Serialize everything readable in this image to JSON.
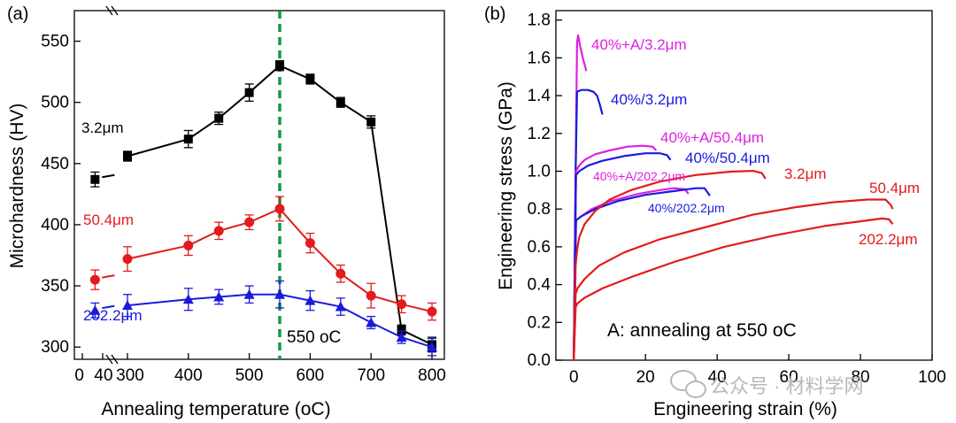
{
  "colors": {
    "black": "#000000",
    "red": "#e41a1c",
    "blue": "#1a1adf",
    "magenta": "#e020e0",
    "green": "#119944",
    "watermark": "#b8b8b8"
  },
  "watermark": {
    "text": "公众号 · 材料学网",
    "icon": "wechat-icon"
  },
  "chart_data": [
    {
      "type": "line",
      "panel_label": "(a)",
      "xlabel": "Annealing temperature (oC)",
      "ylabel": "Microhardness (HV)",
      "x_tick_labels": [
        "0",
        "40",
        "300",
        "400",
        "500",
        "600",
        "700",
        "800"
      ],
      "y_ticks": [
        300,
        350,
        400,
        450,
        500,
        550
      ],
      "axis_break": "between 40 and 300",
      "ylim": [
        290,
        575
      ],
      "grid": false,
      "reference_line": {
        "x": 550,
        "label": "550 oC",
        "style": "dashed",
        "color": "#119944"
      },
      "series": [
        {
          "name": "3.2μm",
          "marker": "square",
          "color": "#000000",
          "x": [
            25,
            300,
            400,
            450,
            500,
            550,
            600,
            650,
            700,
            750,
            800
          ],
          "y": [
            437,
            456,
            470,
            487,
            508,
            530,
            519,
            500,
            484,
            314,
            302
          ],
          "err": [
            6,
            4,
            7,
            5,
            7,
            4,
            4,
            4,
            5,
            4,
            6
          ]
        },
        {
          "name": "50.4μm",
          "marker": "circle",
          "color": "#e41a1c",
          "x": [
            25,
            300,
            400,
            450,
            500,
            550,
            600,
            650,
            700,
            750,
            800
          ],
          "y": [
            355,
            372,
            383,
            395,
            402,
            413,
            385,
            360,
            342,
            335,
            329
          ],
          "err": [
            8,
            10,
            8,
            7,
            6,
            10,
            8,
            7,
            10,
            7,
            7
          ]
        },
        {
          "name": "202.2μm",
          "marker": "triangle",
          "color": "#1a1adf",
          "x": [
            25,
            300,
            400,
            450,
            500,
            550,
            600,
            650,
            700,
            750,
            800
          ],
          "y": [
            330,
            334,
            339,
            341,
            343,
            343,
            338,
            333,
            320,
            308,
            300
          ],
          "err": [
            6,
            9,
            9,
            6,
            7,
            11,
            8,
            7,
            5,
            5,
            7
          ]
        }
      ]
    },
    {
      "type": "line",
      "panel_label": "(b)",
      "xlabel": "Engineering strain (%)",
      "ylabel": "Engineering stress (GPa)",
      "xlim": [
        -5,
        100
      ],
      "ylim": [
        0,
        1.85
      ],
      "x_ticks": [
        0,
        20,
        40,
        60,
        80,
        100
      ],
      "y_ticks": [
        0.0,
        0.2,
        0.4,
        0.6,
        0.8,
        1.0,
        1.2,
        1.4,
        1.6,
        1.8
      ],
      "grid": false,
      "annotation": "A: annealing at 550 oC",
      "series": [
        {
          "name": "40%+A/3.2μm",
          "color": "#e020e0",
          "points": [
            [
              0,
              0
            ],
            [
              0.5,
              1.0
            ],
            [
              0.9,
              1.68
            ],
            [
              1.2,
              1.72
            ],
            [
              1.8,
              1.66
            ],
            [
              2.5,
              1.6
            ],
            [
              3.5,
              1.53
            ]
          ]
        },
        {
          "name": "40%/3.2μm",
          "color": "#1a1adf",
          "points": [
            [
              0,
              0
            ],
            [
              0.5,
              1.0
            ],
            [
              0.9,
              1.42
            ],
            [
              2,
              1.43
            ],
            [
              4,
              1.43
            ],
            [
              5.5,
              1.42
            ],
            [
              6.5,
              1.4
            ],
            [
              7.3,
              1.35
            ],
            [
              8,
              1.3
            ]
          ]
        },
        {
          "name": "40%+A/50.4μm",
          "color": "#e020e0",
          "points": [
            [
              0,
              0
            ],
            [
              0.6,
              1.0
            ],
            [
              1.5,
              1.03
            ],
            [
              3,
              1.06
            ],
            [
              6,
              1.09
            ],
            [
              10,
              1.11
            ],
            [
              15,
              1.13
            ],
            [
              19,
              1.135
            ],
            [
              22,
              1.13
            ],
            [
              23,
              1.11
            ]
          ]
        },
        {
          "name": "40%/50.4μm",
          "color": "#1a1adf",
          "points": [
            [
              0,
              0
            ],
            [
              0.6,
              0.98
            ],
            [
              1.5,
              1.0
            ],
            [
              4,
              1.03
            ],
            [
              8,
              1.055
            ],
            [
              14,
              1.08
            ],
            [
              20,
              1.095
            ],
            [
              24,
              1.095
            ],
            [
              26,
              1.085
            ],
            [
              27,
              1.06
            ]
          ]
        },
        {
          "name": "40%+A/202.2μm",
          "color": "#e020e0",
          "points": [
            [
              0,
              0
            ],
            [
              0.6,
              0.74
            ],
            [
              2,
              0.76
            ],
            [
              5,
              0.8
            ],
            [
              10,
              0.84
            ],
            [
              18,
              0.88
            ],
            [
              24,
              0.9
            ],
            [
              28,
              0.91
            ],
            [
              31,
              0.905
            ],
            [
              32,
              0.88
            ]
          ]
        },
        {
          "name": "40%/202.2μm",
          "color": "#1a1adf",
          "points": [
            [
              0,
              0
            ],
            [
              0.6,
              0.74
            ],
            [
              2,
              0.76
            ],
            [
              6,
              0.8
            ],
            [
              12,
              0.84
            ],
            [
              20,
              0.875
            ],
            [
              28,
              0.895
            ],
            [
              34,
              0.91
            ],
            [
              36.5,
              0.91
            ],
            [
              38,
              0.87
            ]
          ]
        },
        {
          "name": "3.2μm",
          "color": "#e41a1c",
          "points": [
            [
              0,
              0
            ],
            [
              0.5,
              0.5
            ],
            [
              0.9,
              0.58
            ],
            [
              1.5,
              0.65
            ],
            [
              3,
              0.72
            ],
            [
              6,
              0.79
            ],
            [
              10,
              0.85
            ],
            [
              16,
              0.9
            ],
            [
              24,
              0.945
            ],
            [
              34,
              0.98
            ],
            [
              44,
              0.998
            ],
            [
              50,
              1.002
            ],
            [
              52.5,
              0.99
            ],
            [
              53.5,
              0.96
            ]
          ]
        },
        {
          "name": "50.4μm",
          "color": "#e41a1c",
          "points": [
            [
              0,
              0
            ],
            [
              0.5,
              0.35
            ],
            [
              1,
              0.38
            ],
            [
              3,
              0.43
            ],
            [
              7,
              0.5
            ],
            [
              14,
              0.57
            ],
            [
              24,
              0.64
            ],
            [
              36,
              0.7
            ],
            [
              50,
              0.77
            ],
            [
              62,
              0.81
            ],
            [
              72,
              0.835
            ],
            [
              82,
              0.85
            ],
            [
              87,
              0.85
            ],
            [
              88.5,
              0.82
            ],
            [
              89,
              0.8
            ]
          ]
        },
        {
          "name": "202.2μm",
          "color": "#e41a1c",
          "points": [
            [
              0,
              0
            ],
            [
              0.5,
              0.28
            ],
            [
              1,
              0.3
            ],
            [
              3,
              0.33
            ],
            [
              8,
              0.38
            ],
            [
              16,
              0.44
            ],
            [
              28,
              0.52
            ],
            [
              42,
              0.6
            ],
            [
              56,
              0.66
            ],
            [
              70,
              0.71
            ],
            [
              80,
              0.735
            ],
            [
              86,
              0.75
            ],
            [
              88,
              0.745
            ],
            [
              89,
              0.72
            ]
          ]
        }
      ],
      "curve_labels": [
        {
          "text": "40%+A/3.2μm",
          "color": "#e020e0"
        },
        {
          "text": "40%/3.2μm",
          "color": "#1a1adf"
        },
        {
          "text": "40%+A/50.4μm",
          "color": "#e020e0"
        },
        {
          "text": "40%/50.4μm",
          "color": "#1a1adf"
        },
        {
          "text": "40%+A/202.2μm",
          "color": "#e020e0"
        },
        {
          "text": "40%/202.2μm",
          "color": "#1a1adf"
        },
        {
          "text": "3.2μm",
          "color": "#e41a1c"
        },
        {
          "text": "50.4μm",
          "color": "#e41a1c"
        },
        {
          "text": "202.2μm",
          "color": "#e41a1c"
        }
      ]
    }
  ]
}
